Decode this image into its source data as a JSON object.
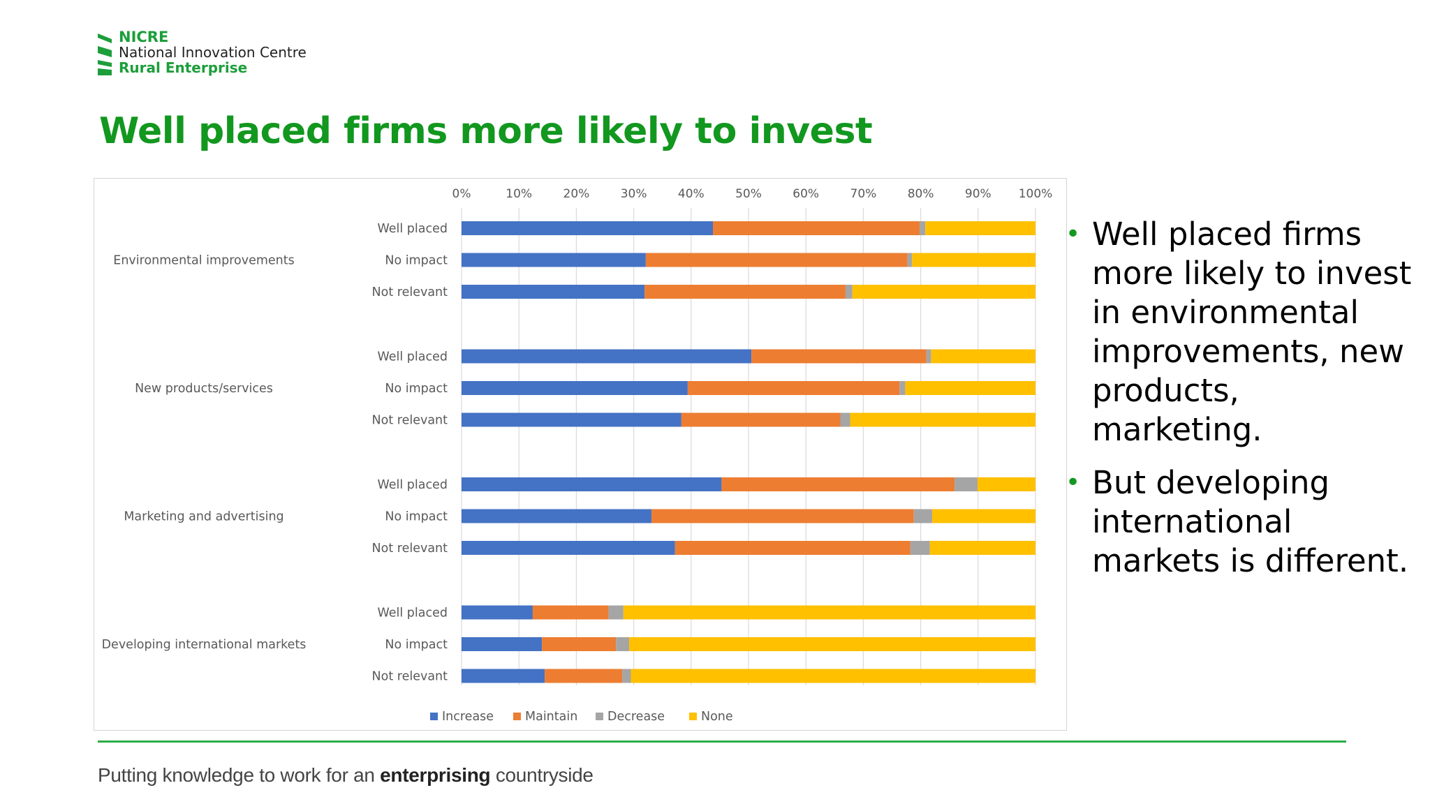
{
  "logo": {
    "line1": "NICRE",
    "line2": "National Innovation Centre",
    "line3": "Rural Enterprise"
  },
  "slide": {
    "title": "Well placed firms more likely to invest",
    "bullets": [
      "Well placed firms more likely to invest in environmental improvements, new products, marketing.",
      "But developing international markets is different."
    ]
  },
  "footer": {
    "prefix": "Putting knowledge to work for an ",
    "emphasis": "enterprising",
    "suffix": " countryside"
  },
  "colors": {
    "brand_green": "#12971f",
    "Increase": "#4472c4",
    "Maintain": "#ed7d31",
    "Decrease": "#a5a5a5",
    "None": "#ffc000"
  },
  "chart_data": {
    "type": "bar",
    "orientation": "horizontal",
    "stacked": "100%",
    "xlim": [
      0,
      100
    ],
    "xticks": [
      "0%",
      "10%",
      "20%",
      "30%",
      "40%",
      "50%",
      "60%",
      "70%",
      "80%",
      "90%",
      "100%"
    ],
    "grid": true,
    "legend": "bottom",
    "groups": [
      {
        "name": "Environmental improvements",
        "bars": [
          {
            "label": "Well placed",
            "values": [
              43.8,
              36.0,
              1.0,
              19.2
            ]
          },
          {
            "label": "No impact",
            "values": [
              32.1,
              45.6,
              0.8,
              21.5
            ]
          },
          {
            "label": "Not relevant",
            "values": [
              31.9,
              35.0,
              1.2,
              31.9
            ]
          }
        ]
      },
      {
        "name": "New products/services",
        "bars": [
          {
            "label": "Well placed",
            "values": [
              50.5,
              30.5,
              0.8,
              18.2
            ]
          },
          {
            "label": "No impact",
            "values": [
              39.4,
              36.9,
              1.0,
              22.7
            ]
          },
          {
            "label": "Not relevant",
            "values": [
              38.3,
              27.7,
              1.7,
              32.3
            ]
          }
        ]
      },
      {
        "name": "Marketing and advertising",
        "bars": [
          {
            "label": "Well placed",
            "values": [
              45.3,
              40.6,
              4.0,
              10.1
            ]
          },
          {
            "label": "No impact",
            "values": [
              33.1,
              45.7,
              3.2,
              18.0
            ]
          },
          {
            "label": "Not relevant",
            "values": [
              37.2,
              41.0,
              3.4,
              18.4
            ]
          }
        ]
      },
      {
        "name": "Developing international markets",
        "bars": [
          {
            "label": "Well placed",
            "values": [
              12.4,
              13.2,
              2.6,
              71.8
            ]
          },
          {
            "label": "No impact",
            "values": [
              14.0,
              12.9,
              2.3,
              70.8
            ]
          },
          {
            "label": "Not relevant",
            "values": [
              14.5,
              13.5,
              1.5,
              70.5
            ]
          }
        ]
      }
    ],
    "series": [
      {
        "name": "Increase"
      },
      {
        "name": "Maintain"
      },
      {
        "name": "Decrease"
      },
      {
        "name": "None"
      }
    ]
  }
}
